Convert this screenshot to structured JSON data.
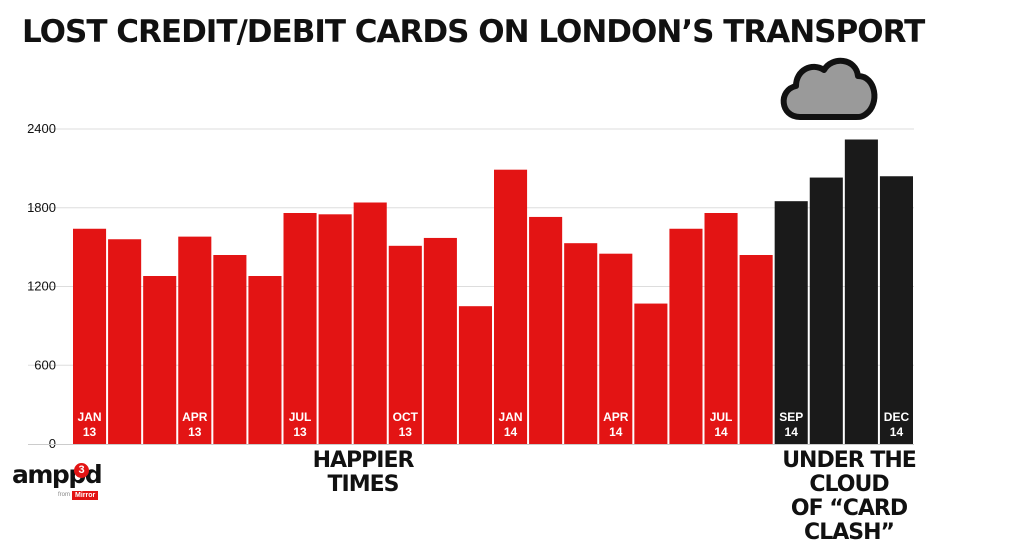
{
  "chart_data": {
    "type": "bar",
    "title": "LOST CREDIT/DEBIT CARDS ON LONDON’S TRANSPORT",
    "xlabel": "",
    "ylabel": "",
    "ylim": [
      0,
      2400
    ],
    "yticks": [
      "0",
      "600",
      "1200",
      "1800",
      "2400"
    ],
    "grid": true,
    "categories": [
      "Jan 13",
      "Feb 13",
      "Mar 13",
      "Apr 13",
      "May 13",
      "Jun 13",
      "Jul 13",
      "Aug 13",
      "Sep 13",
      "Oct 13",
      "Nov 13",
      "Dec 13",
      "Jan 14",
      "Feb 14",
      "Mar 14",
      "Apr 14",
      "May 14",
      "Jun 14",
      "Jul 14",
      "Aug 14",
      "Sep 14",
      "Oct 14",
      "Nov 14",
      "Dec 14"
    ],
    "values": [
      1640,
      1560,
      1280,
      1580,
      1440,
      1280,
      1760,
      1750,
      1840,
      1510,
      1570,
      1050,
      2090,
      1730,
      1530,
      1450,
      1070,
      1640,
      1760,
      1440,
      1850,
      2030,
      2320,
      2040
    ],
    "bar_labels": [
      {
        "index": 0,
        "line1": "JAN",
        "line2": "13"
      },
      {
        "index": 3,
        "line1": "APR",
        "line2": "13"
      },
      {
        "index": 6,
        "line1": "JUL",
        "line2": "13"
      },
      {
        "index": 9,
        "line1": "OCT",
        "line2": "13"
      },
      {
        "index": 12,
        "line1": "JAN",
        "line2": "14"
      },
      {
        "index": 15,
        "line1": "APR",
        "line2": "14"
      },
      {
        "index": 18,
        "line1": "JUL",
        "line2": "14"
      },
      {
        "index": 20,
        "line1": "SEP",
        "line2": "14"
      },
      {
        "index": 23,
        "line1": "DEC",
        "line2": "14"
      }
    ],
    "highlight_from_index": 20,
    "colors": {
      "normal": "#e31414",
      "highlight": "#1a1a1a",
      "grid": "#dddddd",
      "cloud": "#9a9a9a"
    }
  },
  "captions": {
    "left": "HAPPIER TIMES",
    "right_line1": "UNDER THE CLOUD",
    "right_line2": "OF “CARD CLASH”"
  },
  "logo": {
    "text": "amppd",
    "badge": "3",
    "small": "from",
    "brand": "Mirror"
  }
}
